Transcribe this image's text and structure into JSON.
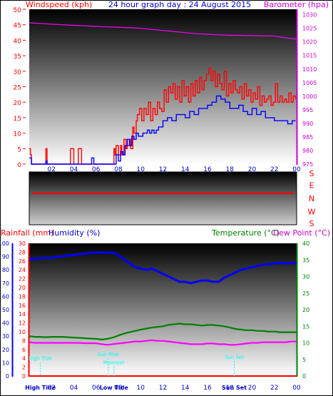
{
  "chart_data": [
    {
      "type": "line",
      "title": "24 hour graph day : 24 August 2015",
      "ylabel_left": "Windspeed (kph)",
      "ylabel_right": "Barometer (hpa)",
      "ylim_left": [
        0,
        50
      ],
      "ylim_right": [
        975,
        1032
      ],
      "yticks_left": [
        0,
        5,
        10,
        15,
        20,
        25,
        30,
        35,
        40,
        45,
        50
      ],
      "yticks_right": [
        975,
        980,
        985,
        990,
        995,
        1000,
        1005,
        1010,
        1015,
        1020,
        1025,
        1030
      ],
      "xlim": [
        0,
        24
      ],
      "xtick_labels": [
        "02",
        "04",
        "06",
        "08",
        "10",
        "12",
        "14",
        "16",
        "18",
        "20",
        "22",
        "00"
      ],
      "grid": false,
      "series": [
        {
          "name": "Wind Gust",
          "color": "#ff0000",
          "x": [
            0,
            0.1,
            0.2,
            1.4,
            1.5,
            1.6,
            3.6,
            3.7,
            3.9,
            4.0,
            4.3,
            4.4,
            4.6,
            4.7,
            7.4,
            7.6,
            7.7,
            7.8,
            8.0,
            8.2,
            8.3,
            8.5,
            8.7,
            8.8,
            9.0,
            9.1,
            9.3,
            9.4,
            9.6,
            9.7,
            9.9,
            10.1,
            10.3,
            10.5,
            10.7,
            10.9,
            11.1,
            11.3,
            11.5,
            11.7,
            11.9,
            12.1,
            12.3,
            12.5,
            12.7,
            12.9,
            13.1,
            13.3,
            13.5,
            13.7,
            13.9,
            14.1,
            14.3,
            14.5,
            14.7,
            14.9,
            15.1,
            15.3,
            15.5,
            15.7,
            15.9,
            16.1,
            16.3,
            16.5,
            16.7,
            16.9,
            17.1,
            17.3,
            17.5,
            17.7,
            17.9,
            18.1,
            18.3,
            18.5,
            18.7,
            18.9,
            19.1,
            19.3,
            19.5,
            19.7,
            19.9,
            20.1,
            20.3,
            20.5,
            20.7,
            20.9,
            21.1,
            21.3,
            21.5,
            21.7,
            21.9,
            22.1,
            22.3,
            22.5,
            22.7,
            22.9,
            23.1,
            23.3,
            23.5,
            23.7,
            23.9
          ],
          "values": [
            5,
            3,
            0,
            0,
            5,
            0,
            0,
            5,
            5,
            0,
            0,
            5,
            5,
            0,
            0,
            5,
            3,
            6,
            3,
            6,
            3,
            8,
            5,
            6,
            8,
            5,
            12,
            10,
            14,
            16,
            18,
            14,
            18,
            16,
            20,
            14,
            18,
            16,
            20,
            18,
            17,
            24,
            20,
            25,
            23,
            26,
            21,
            25,
            20,
            27,
            22,
            25,
            20,
            26,
            22,
            27,
            23,
            28,
            24,
            27,
            29,
            31,
            27,
            30,
            25,
            29,
            26,
            24,
            30,
            22,
            26,
            23,
            27,
            24,
            23,
            25,
            21,
            26,
            22,
            24,
            20,
            23,
            21,
            25,
            19,
            22,
            20,
            21,
            22,
            19,
            20,
            26,
            20,
            22,
            20,
            21,
            20,
            23,
            20,
            22,
            21
          ]
        },
        {
          "name": "Wind Average",
          "color": "#0000ff",
          "x": [
            0,
            0.2,
            0.4,
            1.4,
            1.5,
            1.6,
            5.5,
            5.6,
            5.8,
            7.6,
            7.8,
            8.0,
            8.2,
            8.4,
            8.6,
            8.8,
            9.0,
            9.2,
            9.4,
            9.6,
            9.8,
            10.0,
            10.2,
            10.4,
            10.6,
            10.8,
            11.0,
            11.2,
            11.4,
            11.6,
            11.8,
            12.0,
            12.4,
            12.8,
            13.2,
            13.6,
            14.0,
            14.4,
            14.8,
            15.2,
            15.6,
            16.0,
            16.4,
            16.8,
            17.2,
            17.6,
            18.0,
            18.4,
            18.8,
            19.2,
            19.6,
            20.0,
            20.4,
            20.8,
            21.2,
            21.6,
            22.0,
            22.4,
            22.8,
            23.2,
            23.6,
            23.9
          ],
          "values": [
            2,
            0,
            0,
            0,
            1,
            0,
            0,
            2,
            0,
            0,
            3,
            1,
            4,
            3,
            6,
            8,
            6,
            9,
            8,
            10,
            9,
            9,
            10,
            10,
            11,
            10,
            11,
            10,
            11,
            12,
            12,
            14,
            15,
            14,
            16,
            16,
            15,
            17,
            16,
            18,
            18,
            19,
            20,
            22,
            21,
            20,
            18,
            18,
            19,
            17,
            16,
            18,
            16,
            17,
            15,
            15,
            14,
            14,
            14,
            13,
            14,
            14
          ]
        },
        {
          "name": "Barometer",
          "color": "#ff00ff",
          "axis": "right",
          "x": [
            0,
            1,
            2,
            3,
            4,
            5,
            6,
            7,
            8,
            9,
            10,
            11,
            12,
            13,
            14,
            15,
            16,
            17,
            18,
            19,
            20,
            21,
            22,
            23,
            24
          ],
          "values": [
            1027,
            1026.8,
            1026.5,
            1026.3,
            1026.1,
            1025.9,
            1025.7,
            1025.5,
            1025.4,
            1025.2,
            1025,
            1024.6,
            1024.2,
            1023.8,
            1023.4,
            1023,
            1022.8,
            1022.6,
            1022.4,
            1022.4,
            1022.3,
            1022.2,
            1022.2,
            1021.5,
            1021
          ]
        }
      ]
    },
    {
      "type": "line",
      "title": "",
      "ylabels": [
        "S",
        "E",
        "N",
        "W",
        "S"
      ],
      "series": [
        {
          "name": "Wind Direction",
          "color": "#ff0000",
          "x": [
            0,
            24
          ],
          "values": [
            0.5,
            0.5
          ]
        }
      ]
    },
    {
      "type": "line",
      "title": "",
      "ylabel_rain": "Rainfall (mm)",
      "ylabel_hum": "Humidity (%)",
      "ylabel_temp": "Temperature (°C)",
      "ylabel_dew": "Dew Point (°C)",
      "ylim_hum": [
        0,
        100
      ],
      "ylim_rain": [
        0,
        30
      ],
      "ylim_temp": [
        0,
        40
      ],
      "yticks_hum": [
        0,
        10,
        20,
        30,
        40,
        50,
        60,
        70,
        80,
        90,
        100
      ],
      "yticks_rain": [
        0,
        2,
        4,
        6,
        8,
        10,
        12,
        14,
        16,
        18,
        20,
        22,
        24,
        26,
        28,
        30
      ],
      "yticks_temp": [
        0,
        5,
        10,
        15,
        20,
        25,
        30,
        35,
        40
      ],
      "xlim": [
        0,
        24
      ],
      "xtick_labels": [
        "02",
        "04",
        "06",
        "08",
        "10",
        "12",
        "14",
        "16",
        "18",
        "20",
        "22",
        "00"
      ],
      "grid": false,
      "annotations": [
        {
          "text": "High Tide",
          "x": 1.0,
          "level": 0.12,
          "color": "#00ffff"
        },
        {
          "text": "Sun Rise",
          "x": 7.1,
          "level": 0.15,
          "color": "#00ffff"
        },
        {
          "text": "Moonset",
          "x": 7.6,
          "level": 0.09,
          "color": "#00ffff"
        },
        {
          "text": "Sun Set",
          "x": 18.4,
          "level": 0.13,
          "color": "#00ffff"
        }
      ],
      "bottom_labels": [
        {
          "text": "High Tide",
          "x": 1.0
        },
        {
          "text": "Low Tide",
          "x": 7.6
        },
        {
          "text": "Sun Set",
          "x": 18.4
        }
      ],
      "series": [
        {
          "name": "Humidity",
          "color": "#0000ff",
          "axis": "hum",
          "x": [
            0,
            0.5,
            1,
            1.5,
            2,
            2.5,
            3,
            3.5,
            4,
            4.5,
            5,
            5.5,
            6,
            6.5,
            7,
            7.5,
            8,
            8.5,
            9,
            9.5,
            10,
            10.5,
            11,
            11.5,
            12,
            12.5,
            13,
            13.5,
            14,
            14.5,
            15,
            15.5,
            16,
            16.5,
            17,
            17.5,
            18,
            18.5,
            19,
            19.5,
            20,
            20.5,
            21,
            21.5,
            22,
            22.5,
            23,
            23.5,
            24
          ],
          "values": [
            88,
            88,
            89,
            89,
            89,
            90,
            90,
            91,
            91,
            92,
            92,
            93,
            93,
            93,
            93,
            93,
            91,
            88,
            85,
            82,
            81,
            80,
            81,
            79,
            77,
            75,
            73,
            71,
            71,
            70,
            71,
            72,
            72,
            71,
            71,
            74,
            76,
            78,
            80,
            81,
            82,
            83,
            84,
            84,
            85,
            85,
            85,
            85,
            85
          ]
        },
        {
          "name": "Temperature",
          "color": "#008000",
          "axis": "temp",
          "x": [
            0,
            0.5,
            1,
            1.5,
            2,
            2.5,
            3,
            3.5,
            4,
            4.5,
            5,
            5.5,
            6,
            6.5,
            7,
            7.5,
            8,
            8.5,
            9,
            9.5,
            10,
            10.5,
            11,
            11.5,
            12,
            12.5,
            13,
            13.5,
            14,
            14.5,
            15,
            15.5,
            16,
            16.5,
            17,
            17.5,
            18,
            18.5,
            19,
            19.5,
            20,
            20.5,
            21,
            21.5,
            22,
            22.5,
            23,
            23.5,
            24
          ],
          "values": [
            12,
            11.8,
            11.8,
            11.7,
            11.8,
            11.8,
            11.8,
            11.7,
            11.6,
            11.5,
            11.4,
            11.3,
            11.2,
            11.0,
            11.2,
            11.6,
            12.2,
            12.8,
            13.2,
            13.6,
            14.0,
            14.3,
            14.6,
            14.8,
            15.0,
            15.4,
            15.6,
            15.8,
            15.6,
            15.6,
            15.4,
            15.2,
            15.4,
            15.4,
            15.2,
            15.0,
            14.6,
            14.2,
            14.0,
            13.8,
            13.8,
            13.6,
            13.6,
            13.4,
            13.4,
            13.2,
            13.2,
            13.2,
            13.2
          ]
        },
        {
          "name": "Dew Point",
          "color": "#ff00ff",
          "axis": "temp",
          "x": [
            0,
            0.5,
            1,
            1.5,
            2,
            2.5,
            3,
            3.5,
            4,
            4.5,
            5,
            5.5,
            6,
            6.5,
            7,
            7.5,
            8,
            8.5,
            9,
            9.5,
            10,
            10.5,
            11,
            11.5,
            12,
            12.5,
            13,
            13.5,
            14,
            14.5,
            15,
            15.5,
            16,
            16.5,
            17,
            17.5,
            18,
            18.5,
            19,
            19.5,
            20,
            20.5,
            21,
            21.5,
            22,
            22.5,
            23,
            23.5,
            24
          ],
          "values": [
            10.2,
            10.0,
            10.0,
            10.0,
            10.0,
            10.0,
            10.0,
            10.0,
            10.0,
            10.0,
            9.9,
            9.9,
            9.9,
            9.6,
            9.4,
            9.6,
            9.8,
            10.0,
            10.2,
            10.4,
            10.4,
            10.6,
            10.8,
            10.6,
            10.6,
            10.4,
            10.2,
            10.0,
            9.8,
            9.6,
            9.6,
            9.6,
            9.8,
            9.8,
            9.6,
            9.6,
            9.4,
            9.4,
            9.6,
            9.8,
            10.0,
            10.0,
            10.2,
            10.2,
            10.2,
            10.2,
            10.2,
            10.4,
            10.4
          ]
        },
        {
          "name": "Rainfall",
          "color": "#ff0000",
          "axis": "rain",
          "x": [
            0,
            24
          ],
          "values": [
            0,
            0
          ]
        }
      ]
    }
  ]
}
